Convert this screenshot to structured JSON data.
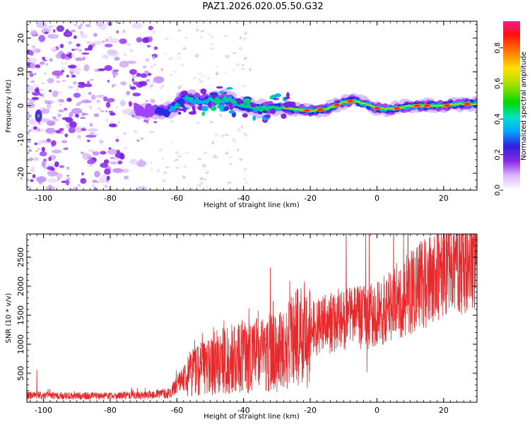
{
  "title": "PAZ1.2026.020.05.50.G32",
  "chart_data": [
    {
      "type": "heatmap",
      "xlabel": "Height of straight line (km)",
      "ylabel": "Frequency (Hz)",
      "xlim": [
        -105,
        30
      ],
      "ylim": [
        -25,
        25
      ],
      "xticks": [
        -100,
        -80,
        -60,
        -40,
        -20,
        0,
        20
      ],
      "yticks": [
        -20,
        -10,
        0,
        10,
        20
      ],
      "xtick_labels": [
        "-100",
        "-80",
        "-60",
        "-40",
        "-20",
        "0",
        "20"
      ],
      "ytick_labels": [
        "-20",
        "-10",
        "0",
        "10",
        "20"
      ],
      "colorbar": {
        "label": "Normalized spectral amplitude",
        "range": [
          0,
          0.95
        ],
        "ticks": [
          0,
          0.2,
          0.4,
          0.6,
          0.8
        ],
        "tick_labels": [
          "0.0",
          "0.2",
          "0.4",
          "0.6",
          "0.8"
        ]
      },
      "ridge_frequency": [
        {
          "x": -102,
          "y": -3
        },
        {
          "x": -92,
          "y": -1
        },
        {
          "x": -80,
          "y": -1
        },
        {
          "x": -70,
          "y": -1.5
        },
        {
          "x": -63,
          "y": -2
        },
        {
          "x": -58,
          "y": 2
        },
        {
          "x": -52,
          "y": 1.5
        },
        {
          "x": -45,
          "y": 2
        },
        {
          "x": -40,
          "y": 0
        },
        {
          "x": -35,
          "y": -1
        },
        {
          "x": -30,
          "y": -0.5
        },
        {
          "x": -25,
          "y": -1
        },
        {
          "x": -20,
          "y": -1.5
        },
        {
          "x": -15,
          "y": -1
        },
        {
          "x": -10,
          "y": 1
        },
        {
          "x": -7,
          "y": 1.5
        },
        {
          "x": -2,
          "y": 0
        },
        {
          "x": 0,
          "y": -0.8
        },
        {
          "x": 5,
          "y": -1
        },
        {
          "x": 10,
          "y": 0
        },
        {
          "x": 15,
          "y": 0
        },
        {
          "x": 20,
          "y": 0
        },
        {
          "x": 25,
          "y": 0.5
        },
        {
          "x": 30,
          "y": 0.5
        }
      ]
    },
    {
      "type": "line",
      "xlabel": "Height of straight line (km)",
      "ylabel": "SNR (10 * v/v)",
      "xlim": [
        -105,
        30
      ],
      "ylim": [
        0,
        2900
      ],
      "xticks": [
        -100,
        -80,
        -60,
        -40,
        -20,
        0,
        20
      ],
      "yticks": [
        500,
        1000,
        1500,
        2000,
        2500
      ],
      "xtick_labels": [
        "-100",
        "-80",
        "-60",
        "-40",
        "-20",
        "0",
        "20"
      ],
      "ytick_labels": [
        "500",
        "1000",
        "1500",
        "2000",
        "2500"
      ],
      "series": [
        {
          "name": "SNR",
          "color": "#e8282a",
          "trend": [
            {
              "x": -105,
              "y": 120
            },
            {
              "x": -95,
              "y": 110
            },
            {
              "x": -85,
              "y": 110
            },
            {
              "x": -70,
              "y": 120
            },
            {
              "x": -62,
              "y": 160
            },
            {
              "x": -57,
              "y": 500
            },
            {
              "x": -50,
              "y": 650
            },
            {
              "x": -40,
              "y": 800
            },
            {
              "x": -30,
              "y": 850
            },
            {
              "x": -20,
              "y": 1250
            },
            {
              "x": -10,
              "y": 1450
            },
            {
              "x": 0,
              "y": 1500
            },
            {
              "x": 10,
              "y": 1900
            },
            {
              "x": 20,
              "y": 2250
            },
            {
              "x": 30,
              "y": 2600
            }
          ],
          "peaks": [
            {
              "x": -102,
              "y": 560
            },
            {
              "x": -32,
              "y": 2320
            },
            {
              "x": 4,
              "y": 2200
            },
            {
              "x": 8,
              "y": 2900
            }
          ],
          "dips": [
            {
              "x": -3,
              "y": 520
            }
          ]
        }
      ]
    }
  ]
}
